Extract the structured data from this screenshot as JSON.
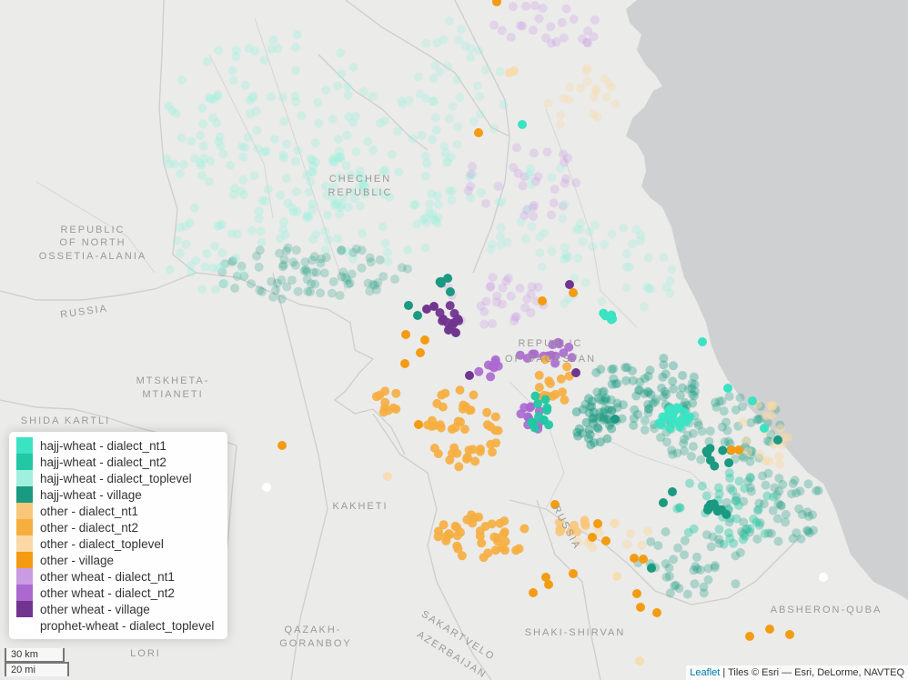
{
  "colors": {
    "hajj_nt1": "#3be3c3",
    "hajj_nt2": "#22c7a3",
    "hajj_toplevel": "#9ff0de",
    "hajj_village": "#1a9a80",
    "other_nt1": "#f9c77a",
    "other_nt2": "#f6ae3f",
    "other_toplevel": "#fad9a6",
    "other_village": "#f39c12",
    "wheat_nt1": "#c99be3",
    "wheat_nt2": "#ab69cf",
    "wheat_village": "#71358f",
    "prophet_toplevel": "#ffffff"
  },
  "legend": [
    {
      "label": "hajj-wheat - dialect_nt1",
      "color": "#3be3c3"
    },
    {
      "label": "hajj-wheat - dialect_nt2",
      "color": "#22c7a3"
    },
    {
      "label": "hajj-wheat - dialect_toplevel",
      "color": "#9ff0de"
    },
    {
      "label": "hajj-wheat - village",
      "color": "#1a9a80"
    },
    {
      "label": "other - dialect_nt1",
      "color": "#f9c77a"
    },
    {
      "label": "other - dialect_nt2",
      "color": "#f6ae3f"
    },
    {
      "label": "other - dialect_toplevel",
      "color": "#fad9a6"
    },
    {
      "label": "other - village",
      "color": "#f39c12"
    },
    {
      "label": "other wheat - dialect_nt1",
      "color": "#c99be3"
    },
    {
      "label": "other wheat - dialect_nt2",
      "color": "#ab69cf"
    },
    {
      "label": "other wheat - village",
      "color": "#71358f"
    },
    {
      "label": "prophet-wheat - dialect_toplevel",
      "color": "#ffffff"
    }
  ],
  "regions": {
    "chechen_1": "CHECHEN",
    "chechen_2": "REPUBLIC",
    "ossetia_1": "REPUBLIC",
    "ossetia_2": "OF NORTH",
    "ossetia_3": "OSSETIA-ALANIA",
    "russia_1": "RUSSIA",
    "dagestan_1": "REPUBLIC",
    "dagestan_2": "OF DAGESTAN",
    "mtskheta_1": "MTSKHETA-",
    "mtskheta_2": "MTIANETI",
    "shida_kartli": "SHIDA KARTLI",
    "kakheti": "KAKHETI",
    "russia_2": "RUSSIA",
    "absheron": "ABSHERON-QUBA",
    "qazakh_1": "QAZAKH-",
    "qazakh_2": "GORANBOY",
    "sakartvelo": "SAKARTVELO",
    "azerbaijan": "AZERBAIJAN",
    "shaki": "SHAKI-SHIRVAN",
    "lori": "LORI"
  },
  "scale": {
    "km": "30 km",
    "mi": "20 mi"
  },
  "attribution": {
    "link": "Leaflet",
    "text": " | Tiles © Esri — Esri, DeLorme, NAVTEQ"
  }
}
